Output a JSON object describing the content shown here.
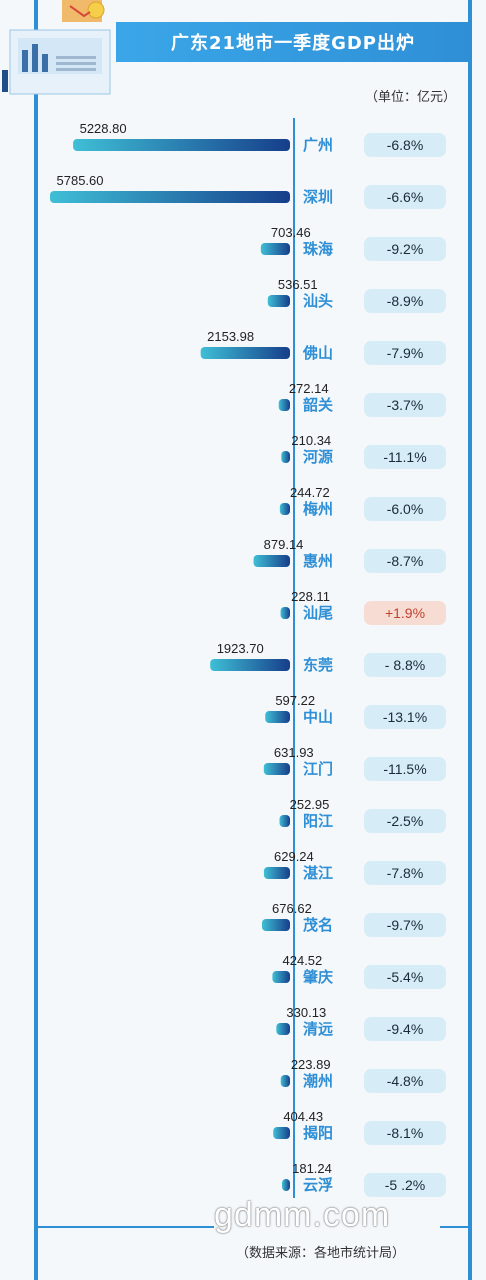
{
  "chart_data": {
    "type": "bar",
    "title": "广东21地市一季度GDP出炉",
    "unit_label": "（单位：亿元）",
    "categories": [
      "广州",
      "深圳",
      "珠海",
      "汕头",
      "佛山",
      "韶关",
      "河源",
      "梅州",
      "惠州",
      "汕尾",
      "东莞",
      "中山",
      "江门",
      "阳江",
      "湛江",
      "茂名",
      "肇庆",
      "清远",
      "潮州",
      "揭阳",
      "云浮"
    ],
    "values": [
      5228.8,
      5785.6,
      703.46,
      536.51,
      2153.98,
      272.14,
      210.34,
      244.72,
      879.14,
      228.11,
      1923.7,
      597.22,
      631.93,
      252.95,
      629.24,
      676.62,
      424.52,
      330.13,
      223.89,
      404.43,
      181.24
    ],
    "value_labels": [
      "5228.80",
      "5785.60",
      "703.46",
      "536.51",
      "2153.98",
      "272.14",
      "210.34",
      "244.72",
      "879.14",
      "228.11",
      "1923.70",
      "597.22",
      "631.93",
      "252.95",
      "629.24",
      "676.62",
      "424.52",
      "330.13",
      "223.89",
      "404.43",
      "181.24"
    ],
    "growth": [
      "-6.8%",
      "-6.6%",
      "-9.2%",
      "-8.9%",
      "-7.9%",
      "-3.7%",
      "-11.1%",
      "-6.0%",
      "-8.7%",
      "+1.9%",
      "- 8.8%",
      "-13.1%",
      "-11.5%",
      "-2.5%",
      "-7.8%",
      "-9.7%",
      "-5.4%",
      "-9.4%",
      "-4.8%",
      "-8.1%",
      "-5 .2%"
    ],
    "colors": {
      "bar_start": "#3fbfd6",
      "bar_end": "#163e8a",
      "city": "#2f8fd6",
      "badge_neg": "#d6ecf7",
      "badge_pos": "#f7dcd3"
    }
  },
  "footer": {
    "watermark": "gdmm.com",
    "source": "（数据来源：各地市统计局）"
  }
}
